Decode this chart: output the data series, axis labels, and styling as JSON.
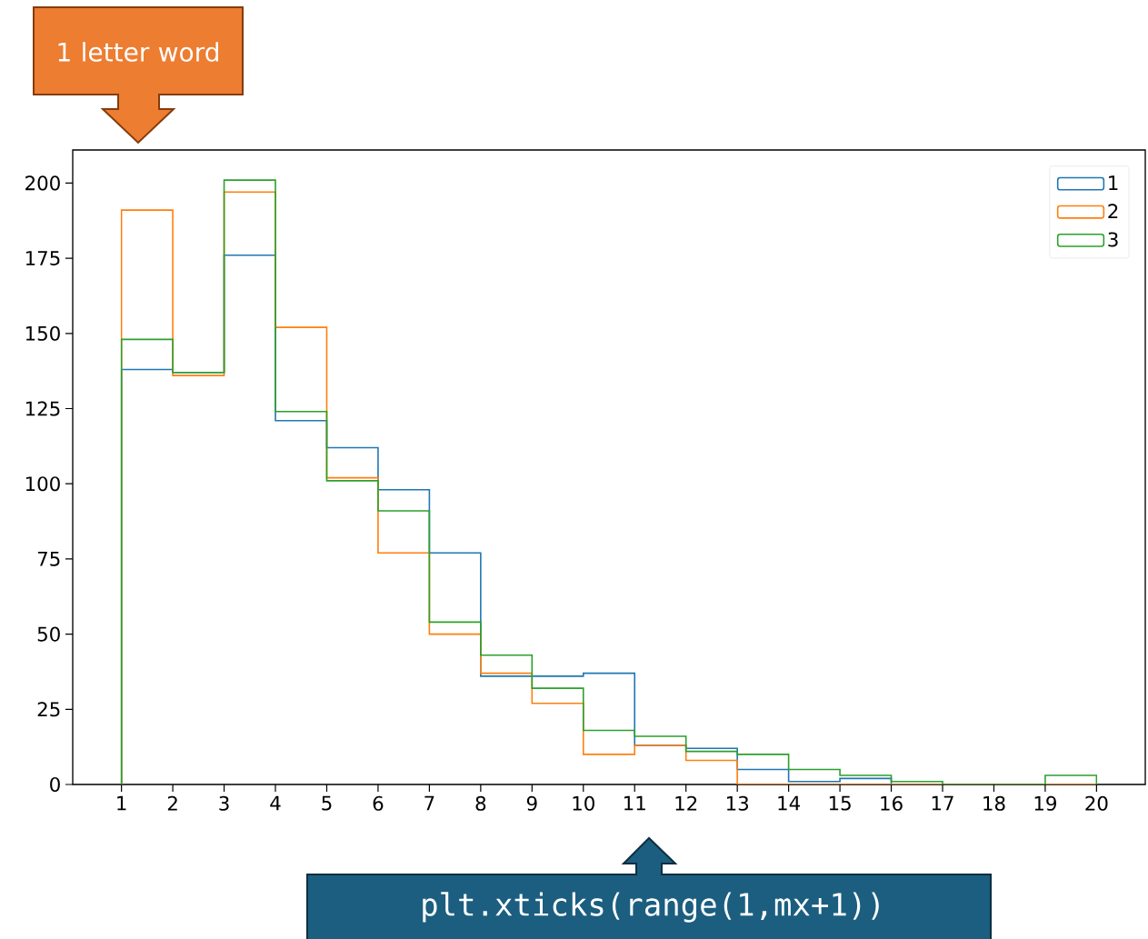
{
  "chart_data": {
    "type": "histogram",
    "bins": [
      1,
      2,
      3,
      4,
      5,
      6,
      7,
      8,
      9,
      10,
      11,
      12,
      13,
      14,
      15,
      16,
      17,
      18,
      19,
      20
    ],
    "series": [
      {
        "name": "1",
        "color": "#1f77b4",
        "values": [
          138,
          137,
          176,
          121,
          112,
          98,
          77,
          36,
          36,
          37,
          13,
          12,
          5,
          1,
          2,
          0,
          0,
          0,
          0
        ]
      },
      {
        "name": "2",
        "color": "#ff7f0e",
        "values": [
          191,
          136,
          197,
          152,
          102,
          77,
          50,
          37,
          27,
          10,
          13,
          8,
          0,
          0,
          0,
          0,
          0,
          0,
          0
        ]
      },
      {
        "name": "3",
        "color": "#2ca02c",
        "values": [
          148,
          137,
          201,
          124,
          101,
          91,
          54,
          43,
          32,
          18,
          16,
          11,
          10,
          5,
          3,
          1,
          0,
          0,
          3
        ]
      }
    ],
    "xlim": [
      0.05,
      20.95
    ],
    "ylim": [
      0,
      211
    ],
    "xticks": [
      1,
      2,
      3,
      4,
      5,
      6,
      7,
      8,
      9,
      10,
      11,
      12,
      13,
      14,
      15,
      16,
      17,
      18,
      19,
      20
    ],
    "yticks": [
      0,
      25,
      50,
      75,
      100,
      125,
      150,
      175,
      200
    ],
    "legend": "top right",
    "annotations": [
      "1 letter word",
      "plt.xticks(range(1,mx+1))"
    ]
  }
}
